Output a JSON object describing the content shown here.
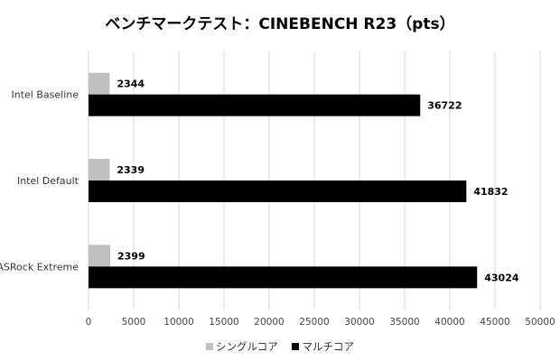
{
  "chart_data": {
    "type": "bar",
    "orientation": "horizontal",
    "title": "ベンチマークテスト：CINEBENCH R23（pts）",
    "categories": [
      "Intel Baseline",
      "Intel Default",
      "ASRock Extreme"
    ],
    "series": [
      {
        "name": "シングルコア",
        "color": "#c0c0c0",
        "values": [
          2344,
          2339,
          2399
        ]
      },
      {
        "name": "マルチコア",
        "color": "#000000",
        "values": [
          36722,
          41832,
          43024
        ]
      }
    ],
    "xlim": [
      0,
      50000
    ],
    "xticks": [
      "0",
      "5000",
      "10000",
      "15000",
      "20000",
      "25000",
      "30000",
      "35000",
      "40000",
      "45000",
      "50000"
    ],
    "grid": true,
    "legend_position": "bottom"
  }
}
